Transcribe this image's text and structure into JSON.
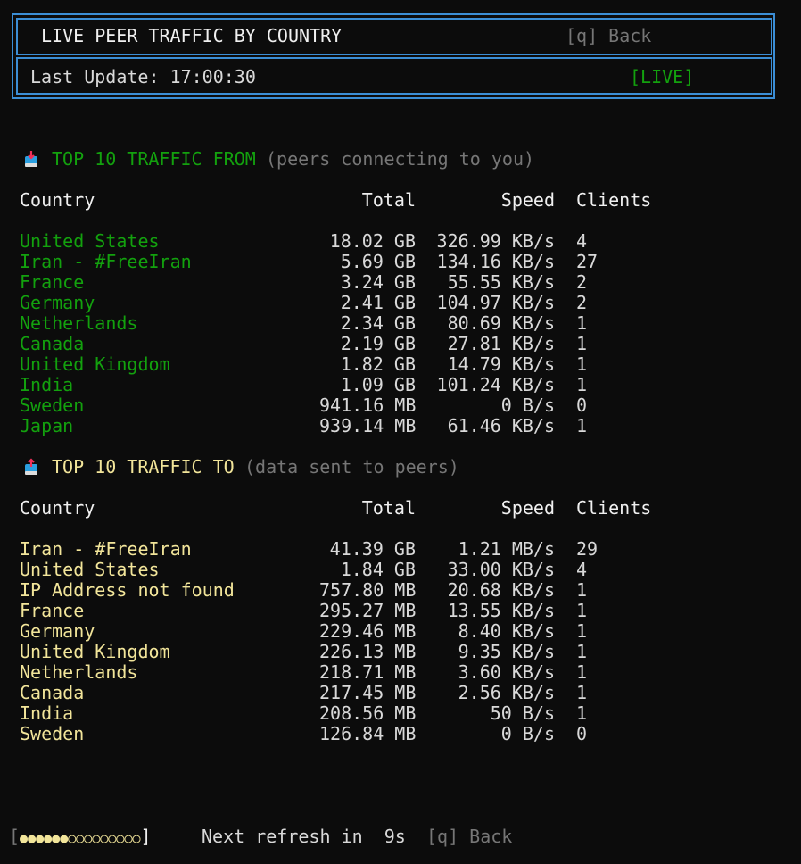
{
  "header": {
    "title": "LIVE PEER TRAFFIC BY COUNTRY",
    "back_hint": "[q] Back",
    "last_update_label": "Last Update: 17:00:30",
    "status": "[LIVE]"
  },
  "colors": {
    "border": "#3b8ed6",
    "from": "#13a10e",
    "to": "#f2e59a",
    "muted": "#767676"
  },
  "columns": {
    "country": "Country",
    "total": "Total",
    "speed": "Speed",
    "clients": "Clients"
  },
  "from": {
    "icon": "inbox-download-icon",
    "title": "TOP 10 TRAFFIC FROM",
    "subtitle": "(peers connecting to you)",
    "rows": [
      {
        "country": "United States",
        "total": "18.02 GB",
        "speed": "326.99 KB/s",
        "clients": "4"
      },
      {
        "country": "Iran - #FreeIran",
        "total": "5.69 GB",
        "speed": "134.16 KB/s",
        "clients": "27"
      },
      {
        "country": "France",
        "total": "3.24 GB",
        "speed": "55.55 KB/s",
        "clients": "2"
      },
      {
        "country": "Germany",
        "total": "2.41 GB",
        "speed": "104.97 KB/s",
        "clients": "2"
      },
      {
        "country": "Netherlands",
        "total": "2.34 GB",
        "speed": "80.69 KB/s",
        "clients": "1"
      },
      {
        "country": "Canada",
        "total": "2.19 GB",
        "speed": "27.81 KB/s",
        "clients": "1"
      },
      {
        "country": "United Kingdom",
        "total": "1.82 GB",
        "speed": "14.79 KB/s",
        "clients": "1"
      },
      {
        "country": "India",
        "total": "1.09 GB",
        "speed": "101.24 KB/s",
        "clients": "1"
      },
      {
        "country": "Sweden",
        "total": "941.16 MB",
        "speed": "0 B/s",
        "clients": "0"
      },
      {
        "country": "Japan",
        "total": "939.14 MB",
        "speed": "61.46 KB/s",
        "clients": "1"
      }
    ]
  },
  "to": {
    "icon": "outbox-upload-icon",
    "title": "TOP 10 TRAFFIC TO",
    "subtitle": "(data sent to peers)",
    "rows": [
      {
        "country": "Iran - #FreeIran",
        "total": "41.39 GB",
        "speed": "1.21 MB/s",
        "clients": "29"
      },
      {
        "country": "United States",
        "total": "1.84 GB",
        "speed": "33.00 KB/s",
        "clients": "4"
      },
      {
        "country": "IP Address not found",
        "total": "757.80 MB",
        "speed": "20.68 KB/s",
        "clients": "1"
      },
      {
        "country": "France",
        "total": "295.27 MB",
        "speed": "13.55 KB/s",
        "clients": "1"
      },
      {
        "country": "Germany",
        "total": "229.46 MB",
        "speed": "8.40 KB/s",
        "clients": "1"
      },
      {
        "country": "United Kingdom",
        "total": "226.13 MB",
        "speed": "9.35 KB/s",
        "clients": "1"
      },
      {
        "country": "Netherlands",
        "total": "218.71 MB",
        "speed": "3.60 KB/s",
        "clients": "1"
      },
      {
        "country": "Canada",
        "total": "217.45 MB",
        "speed": "2.56 KB/s",
        "clients": "1"
      },
      {
        "country": "India",
        "total": "208.56 MB",
        "speed": "50 B/s",
        "clients": "1"
      },
      {
        "country": "Sweden",
        "total": "126.84 MB",
        "speed": "0 B/s",
        "clients": "0"
      }
    ]
  },
  "footer": {
    "progress_filled": 6,
    "progress_total": 15,
    "refresh_text": "Next refresh in  9s",
    "back_hint": "[q] Back"
  }
}
